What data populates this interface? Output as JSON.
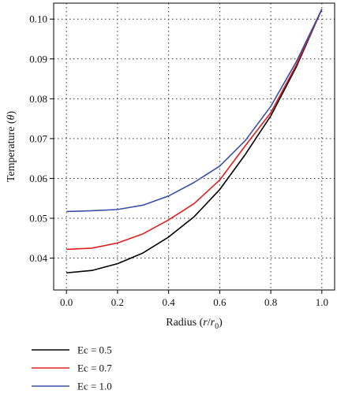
{
  "chart_data": {
    "type": "line",
    "title": "",
    "xlabel": {
      "main": "Radius (",
      "var": "r",
      "slash": "/",
      "var2": "r",
      "sub": "0",
      "close": ")"
    },
    "ylabel": {
      "main": "Temperature (",
      "var": "θ",
      "close": ")"
    },
    "xlim": [
      -0.05,
      1.05
    ],
    "ylim": [
      0.032,
      0.104
    ],
    "xticks": [
      "0.0",
      "0.2",
      "0.4",
      "0.6",
      "0.8",
      "1.0"
    ],
    "yticks": [
      "0.04",
      "0.05",
      "0.06",
      "0.07",
      "0.08",
      "0.09",
      "0.10"
    ],
    "grid": true,
    "legend_position": "bottom-left",
    "x": [
      0.0,
      0.1,
      0.2,
      0.3,
      0.4,
      0.5,
      0.6,
      0.7,
      0.8,
      0.9,
      1.0
    ],
    "series": [
      {
        "name": "Ec = 0.5",
        "color": "#000000",
        "values": [
          0.0363,
          0.0369,
          0.0386,
          0.0413,
          0.0453,
          0.0504,
          0.0572,
          0.066,
          0.0757,
          0.088,
          0.1025
        ]
      },
      {
        "name": "Ec = 0.7",
        "color": "#e0201f",
        "values": [
          0.0422,
          0.0425,
          0.0438,
          0.0461,
          0.0496,
          0.0537,
          0.0596,
          0.0682,
          0.0765,
          0.0885,
          0.1025
        ]
      },
      {
        "name": "Ec = 1.0",
        "color": "#3a50a8",
        "values": [
          0.0517,
          0.0519,
          0.0522,
          0.0533,
          0.0556,
          0.059,
          0.0631,
          0.0695,
          0.0781,
          0.0893,
          0.1025
        ]
      }
    ]
  }
}
